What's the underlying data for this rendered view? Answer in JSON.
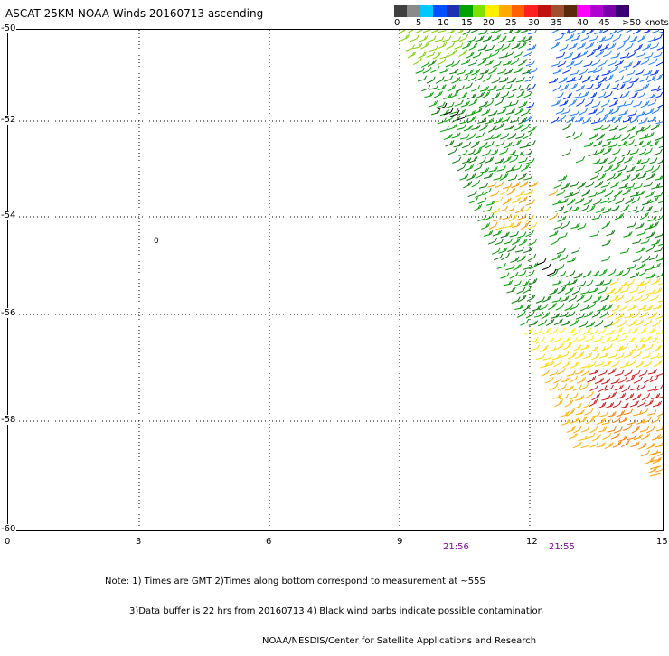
{
  "title": "ASCAT 25KM NOAA Winds 20160713 ascending",
  "colorbar": {
    "colors": [
      "#404040",
      "#8a8a8a",
      "#00c8ff",
      "#0050ff",
      "#1f2fb0",
      "#00a000",
      "#80e000",
      "#ffee00",
      "#ffaa00",
      "#ff6000",
      "#ff2020",
      "#c01010",
      "#a05030",
      "#5a2a0a",
      "#ff00ff",
      "#b000d0",
      "#7a00aa",
      "#3a0070"
    ],
    "labels": [
      "0",
      "5",
      "10",
      "15",
      "20",
      "25",
      "30",
      "35",
      "40",
      "45",
      ">50 knots"
    ]
  },
  "axes": {
    "x_ticks": [
      "0",
      "3",
      "6",
      "9",
      "12",
      "15"
    ],
    "y_ticks": [
      "-50",
      "-52",
      "-54",
      "-56",
      "-58",
      "-60"
    ],
    "x_range": [
      0,
      15
    ],
    "y_range": [
      -50,
      -60
    ]
  },
  "pass_times": [
    "21:56",
    "21:55"
  ],
  "notes": [
    "Note: 1) Times are GMT 2)Times along bottom correspond to measurement at ~55S",
    "3)Data buffer is 22 hrs from 20160713 4) Black wind barbs indicate possible contamination",
    "NOAA/NESDIS/Center for Satellite Applications and Research"
  ],
  "marker_label": "0"
}
